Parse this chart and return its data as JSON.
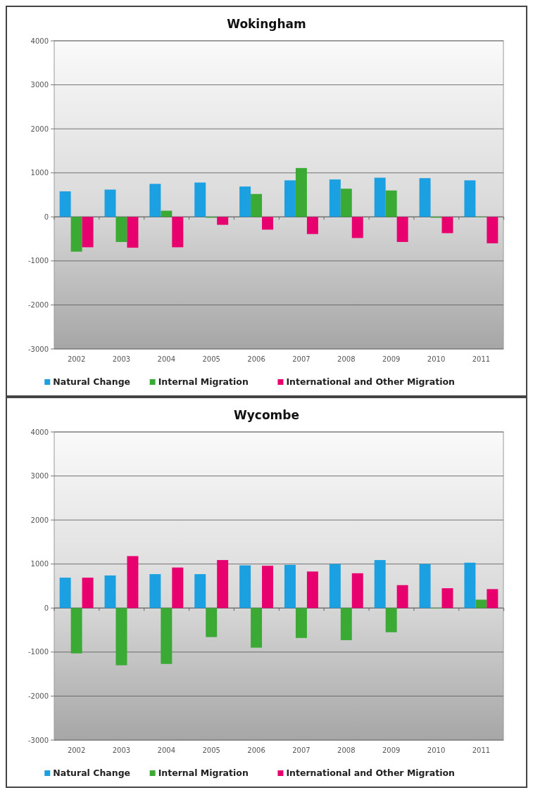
{
  "chart_data": [
    {
      "type": "bar",
      "title": "Wokingham",
      "categories": [
        "2002",
        "2003",
        "2004",
        "2005",
        "2006",
        "2007",
        "2008",
        "2009",
        "2010",
        "2011"
      ],
      "series": [
        {
          "name": "Natural Change",
          "color": "#1ba1e2",
          "values": [
            580,
            620,
            750,
            780,
            690,
            830,
            850,
            890,
            880,
            830
          ]
        },
        {
          "name": "Internal Migration",
          "color": "#3aaa35",
          "values": [
            -790,
            -570,
            140,
            -20,
            520,
            1110,
            640,
            600,
            -20,
            -10
          ]
        },
        {
          "name": "International and Other Migration",
          "color": "#e8006e",
          "values": [
            -690,
            -700,
            -690,
            -180,
            -290,
            -390,
            -480,
            -570,
            -370,
            -600
          ]
        }
      ],
      "ylim": [
        -3000,
        4000
      ],
      "yticks": [
        -3000,
        -2000,
        -1000,
        0,
        1000,
        2000,
        3000,
        4000
      ],
      "grid": "y",
      "legend": "bottom"
    },
    {
      "type": "bar",
      "title": "Wycombe",
      "categories": [
        "2002",
        "2003",
        "2004",
        "2005",
        "2006",
        "2007",
        "2008",
        "2009",
        "2010",
        "2011"
      ],
      "series": [
        {
          "name": "Natural Change",
          "color": "#1ba1e2",
          "values": [
            690,
            740,
            770,
            770,
            970,
            980,
            1000,
            1090,
            1000,
            1030
          ]
        },
        {
          "name": "Internal Migration",
          "color": "#3aaa35",
          "values": [
            -1030,
            -1300,
            -1270,
            -660,
            -900,
            -680,
            -730,
            -550,
            -10,
            190
          ]
        },
        {
          "name": "International and Other Migration",
          "color": "#e8006e",
          "values": [
            690,
            1180,
            920,
            1090,
            960,
            830,
            790,
            520,
            450,
            430
          ]
        }
      ],
      "ylim": [
        -3000,
        4000
      ],
      "yticks": [
        -3000,
        -2000,
        -1000,
        0,
        1000,
        2000,
        3000,
        4000
      ],
      "grid": "y",
      "legend": "bottom"
    }
  ]
}
